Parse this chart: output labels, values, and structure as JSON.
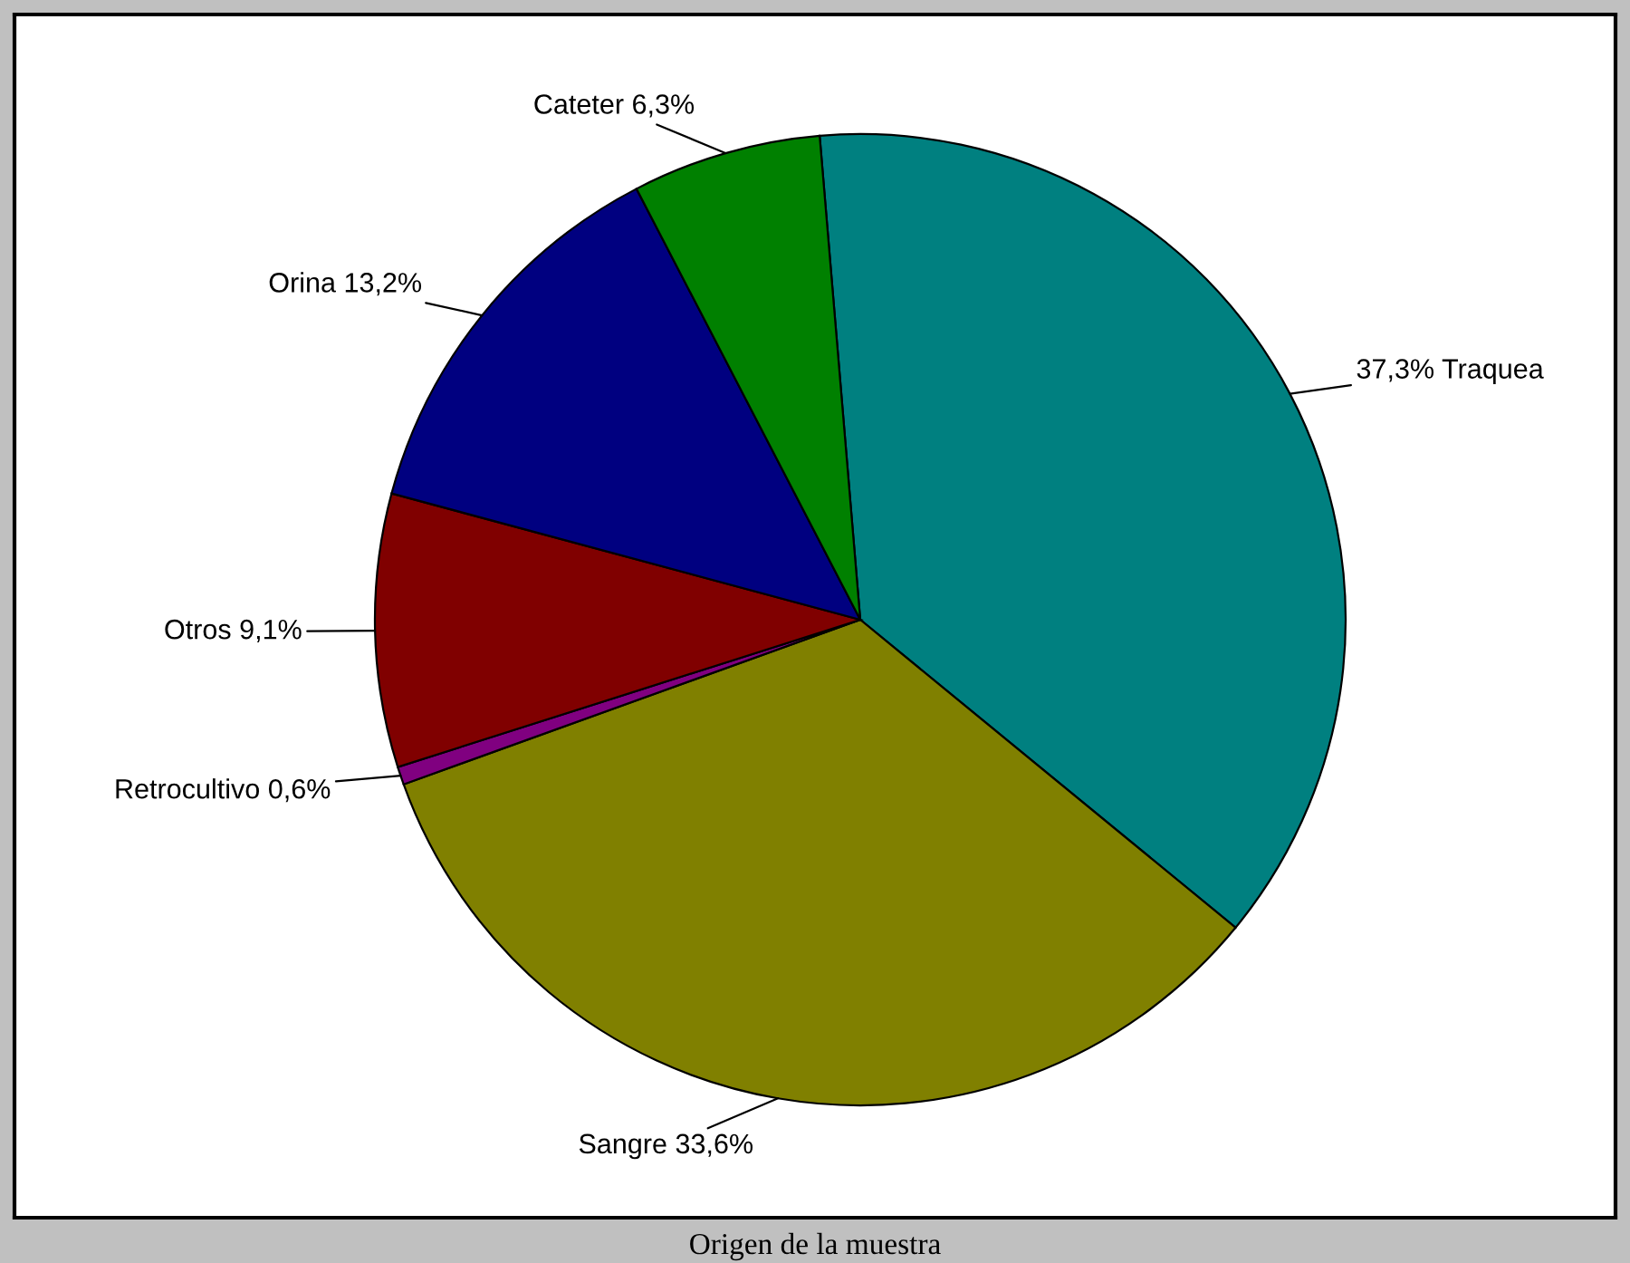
{
  "chart_data": {
    "type": "pie",
    "title": "Origen de la muestra",
    "categories": [
      "Traquea",
      "Sangre",
      "Retrocultivo",
      "Otros",
      "Orina",
      "Cateter"
    ],
    "values": [
      37.3,
      33.6,
      0.6,
      9.1,
      13.2,
      6.3
    ],
    "colors": [
      "#008080",
      "#808000",
      "#800080",
      "#800000",
      "#000080",
      "#008000"
    ],
    "value_labels": [
      "37,3%",
      "33,6%",
      "0,6%",
      "9,1%",
      "13,2%",
      "6,3%"
    ],
    "legend": false
  }
}
